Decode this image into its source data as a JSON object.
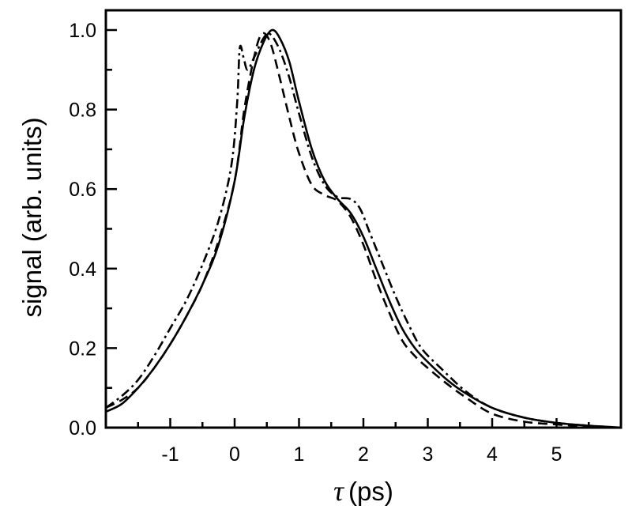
{
  "chart_data": {
    "type": "line",
    "title": "",
    "xlabel_symbol": "τ",
    "xlabel_unit": "(ps)",
    "xlabel": "τ (ps)",
    "ylabel": "signal (arb. units)",
    "xlim": [
      -2.0,
      6.0
    ],
    "ylim": [
      0.0,
      1.05
    ],
    "x_ticks": [
      -1,
      0,
      1,
      2,
      3,
      4,
      5
    ],
    "x_tick_labels": [
      "-1",
      "0",
      "1",
      "2",
      "3",
      "4",
      "5"
    ],
    "x_minor_ticks": [
      -1.5,
      -0.5,
      0.5,
      1.5,
      2.5,
      3.5,
      4.5,
      5.5
    ],
    "y_ticks": [
      0.0,
      0.2,
      0.4,
      0.6,
      0.8,
      1.0
    ],
    "y_tick_labels": [
      "0.0",
      "0.2",
      "0.4",
      "0.6",
      "0.8",
      "1.0"
    ],
    "y_minor_ticks": [
      0.1,
      0.3,
      0.5,
      0.7,
      0.9
    ],
    "grid": false,
    "legend": null,
    "series": [
      {
        "name": "solid",
        "style": "solid",
        "x": [
          -2.0,
          -1.75,
          -1.5,
          -1.25,
          -1.0,
          -0.75,
          -0.5,
          -0.25,
          0.0,
          0.15,
          0.3,
          0.45,
          0.58,
          0.7,
          0.85,
          1.0,
          1.2,
          1.4,
          1.6,
          1.8,
          2.0,
          2.2,
          2.4,
          2.6,
          2.8,
          3.0,
          3.3,
          3.6,
          4.0,
          4.5,
          5.0,
          5.5,
          6.0
        ],
        "y": [
          0.04,
          0.06,
          0.1,
          0.15,
          0.21,
          0.28,
          0.36,
          0.46,
          0.62,
          0.78,
          0.9,
          0.97,
          1.0,
          0.98,
          0.92,
          0.82,
          0.7,
          0.62,
          0.575,
          0.54,
          0.48,
          0.4,
          0.32,
          0.25,
          0.2,
          0.165,
          0.12,
          0.085,
          0.05,
          0.025,
          0.012,
          0.005,
          0.0
        ]
      },
      {
        "name": "dashed",
        "style": "dashed",
        "x": [
          -2.0,
          -1.75,
          -1.5,
          -1.25,
          -1.0,
          -0.75,
          -0.5,
          -0.25,
          0.0,
          0.15,
          0.3,
          0.42,
          0.55,
          0.7,
          0.85,
          1.0,
          1.2,
          1.4,
          1.6,
          1.8,
          2.0,
          2.2,
          2.4,
          2.6,
          2.8,
          3.0,
          3.3,
          3.6,
          4.0,
          4.5,
          5.0,
          5.5,
          6.0
        ],
        "y": [
          0.05,
          0.07,
          0.1,
          0.15,
          0.21,
          0.28,
          0.36,
          0.47,
          0.62,
          0.8,
          0.93,
          0.99,
          0.97,
          0.88,
          0.78,
          0.69,
          0.61,
          0.585,
          0.57,
          0.53,
          0.46,
          0.37,
          0.29,
          0.22,
          0.18,
          0.15,
          0.11,
          0.075,
          0.035,
          0.015,
          0.008,
          0.003,
          0.0
        ]
      },
      {
        "name": "dash-dot",
        "style": "dashdot",
        "x": [
          -2.0,
          -1.75,
          -1.5,
          -1.25,
          -1.0,
          -0.75,
          -0.5,
          -0.25,
          -0.05,
          0.04,
          0.08,
          0.14,
          0.2,
          0.3,
          0.45,
          0.55,
          0.7,
          0.85,
          1.0,
          1.2,
          1.4,
          1.6,
          1.8,
          1.95,
          2.1,
          2.3,
          2.5,
          2.7,
          2.9,
          3.2,
          3.6,
          4.0,
          4.5,
          5.0,
          5.5,
          6.0
        ],
        "y": [
          0.05,
          0.08,
          0.12,
          0.18,
          0.25,
          0.32,
          0.41,
          0.52,
          0.66,
          0.82,
          0.955,
          0.93,
          0.9,
          0.93,
          0.98,
          0.99,
          0.95,
          0.88,
          0.79,
          0.68,
          0.61,
          0.58,
          0.575,
          0.55,
          0.49,
          0.41,
          0.33,
          0.26,
          0.2,
          0.15,
          0.09,
          0.05,
          0.025,
          0.012,
          0.005,
          0.0
        ]
      }
    ]
  },
  "colors": {
    "background": "#ffffff",
    "ink": "#000000"
  }
}
